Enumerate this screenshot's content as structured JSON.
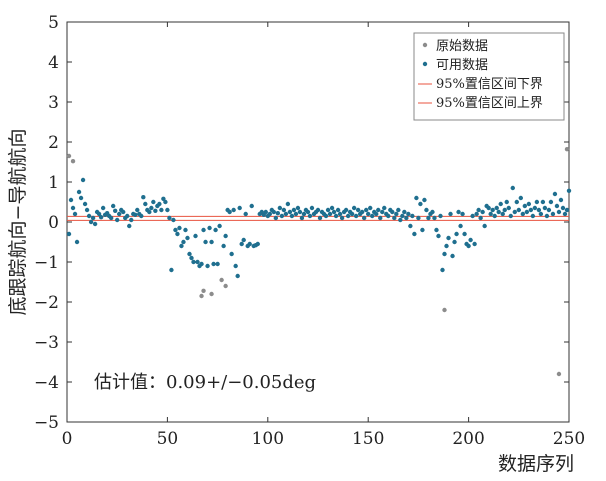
{
  "chart_data": {
    "type": "scatter",
    "title": "",
    "xlabel": "数据序列",
    "ylabel": "底跟踪航向−导航航向",
    "xlim": [
      0,
      250
    ],
    "ylim": [
      -5,
      5
    ],
    "xticks": [
      "0",
      "50",
      "100",
      "150",
      "200",
      "250"
    ],
    "yticks": [
      "−5",
      "−4",
      "−3",
      "−2",
      "−1",
      "0",
      "1",
      "2",
      "3",
      "4",
      "5"
    ],
    "annotation": "估计值：0.09+/−0.05deg",
    "lines": [
      {
        "name": "95%置信区间下界",
        "y": 0.04,
        "color": "#e8533f"
      },
      {
        "name": "95%置信区间上界",
        "y": 0.14,
        "color": "#e8533f"
      }
    ],
    "series": [
      {
        "name": "原始数据",
        "color": "#8c8c8c",
        "points": [
          [
            1,
            1.65
          ],
          [
            3,
            1.52
          ],
          [
            67,
            -1.85
          ],
          [
            68,
            -1.72
          ],
          [
            72,
            -1.8
          ],
          [
            77,
            -1.45
          ],
          [
            79,
            -1.6
          ],
          [
            188,
            -2.2
          ],
          [
            245,
            -3.8
          ],
          [
            249,
            1.82
          ]
        ]
      },
      {
        "name": "可用数据",
        "color": "#1f6f8f",
        "points": [
          [
            1,
            -0.3
          ],
          [
            2,
            0.55
          ],
          [
            3,
            0.35
          ],
          [
            4,
            0.2
          ],
          [
            5,
            -0.5
          ],
          [
            6,
            0.75
          ],
          [
            7,
            0.6
          ],
          [
            8,
            1.05
          ],
          [
            9,
            0.45
          ],
          [
            10,
            0.3
          ],
          [
            11,
            0.15
          ],
          [
            12,
            0.0
          ],
          [
            13,
            0.1
          ],
          [
            14,
            -0.05
          ],
          [
            15,
            0.25
          ],
          [
            16,
            0.2
          ],
          [
            17,
            0.12
          ],
          [
            18,
            0.35
          ],
          [
            19,
            0.18
          ],
          [
            20,
            0.22
          ],
          [
            21,
            0.15
          ],
          [
            22,
            0.1
          ],
          [
            23,
            0.4
          ],
          [
            24,
            0.28
          ],
          [
            25,
            0.05
          ],
          [
            26,
            0.2
          ],
          [
            27,
            0.3
          ],
          [
            28,
            0.25
          ],
          [
            29,
            0.1
          ],
          [
            30,
            0.15
          ],
          [
            31,
            -0.1
          ],
          [
            32,
            0.05
          ],
          [
            33,
            0.2
          ],
          [
            34,
            0.18
          ],
          [
            35,
            0.3
          ],
          [
            36,
            0.2
          ],
          [
            37,
            0.15
          ],
          [
            38,
            0.62
          ],
          [
            39,
            0.45
          ],
          [
            40,
            0.3
          ],
          [
            41,
            0.25
          ],
          [
            42,
            0.35
          ],
          [
            43,
            0.5
          ],
          [
            44,
            0.28
          ],
          [
            45,
            0.4
          ],
          [
            46,
            0.45
          ],
          [
            47,
            0.3
          ],
          [
            48,
            0.58
          ],
          [
            49,
            0.5
          ],
          [
            50,
            0.3
          ],
          [
            51,
            0.1
          ],
          [
            52,
            -1.2
          ],
          [
            53,
            0.05
          ],
          [
            54,
            -0.2
          ],
          [
            55,
            -0.3
          ],
          [
            56,
            -0.15
          ],
          [
            57,
            -0.6
          ],
          [
            58,
            -0.5
          ],
          [
            59,
            -0.2
          ],
          [
            60,
            -0.4
          ],
          [
            61,
            -0.8
          ],
          [
            62,
            -0.9
          ],
          [
            63,
            -1.0
          ],
          [
            64,
            -0.35
          ],
          [
            65,
            -1.0
          ],
          [
            66,
            -1.1
          ],
          [
            67,
            -1.05
          ],
          [
            68,
            -0.2
          ],
          [
            69,
            -0.5
          ],
          [
            70,
            -1.1
          ],
          [
            71,
            -0.15
          ],
          [
            72,
            -0.5
          ],
          [
            73,
            -1.05
          ],
          [
            74,
            -0.2
          ],
          [
            75,
            -1.05
          ],
          [
            76,
            -0.1
          ],
          [
            78,
            -0.6
          ],
          [
            79,
            -0.35
          ],
          [
            80,
            0.3
          ],
          [
            81,
            0.25
          ],
          [
            82,
            -0.8
          ],
          [
            83,
            0.3
          ],
          [
            84,
            -1.1
          ],
          [
            85,
            -1.35
          ],
          [
            86,
            0.35
          ],
          [
            87,
            -0.55
          ],
          [
            88,
            -0.45
          ],
          [
            89,
            0.2
          ],
          [
            90,
            -0.6
          ],
          [
            91,
            -0.55
          ],
          [
            92,
            0.4
          ],
          [
            93,
            -0.6
          ],
          [
            94,
            -0.58
          ],
          [
            95,
            -0.55
          ],
          [
            96,
            0.2
          ],
          [
            97,
            0.25
          ],
          [
            98,
            0.18
          ],
          [
            99,
            0.25
          ],
          [
            100,
            0.15
          ],
          [
            101,
            0.2
          ],
          [
            102,
            0.3
          ],
          [
            103,
            0.25
          ],
          [
            104,
            0.1
          ],
          [
            105,
            0.22
          ],
          [
            106,
            0.35
          ],
          [
            107,
            0.15
          ],
          [
            108,
            0.3
          ],
          [
            109,
            0.2
          ],
          [
            110,
            0.45
          ],
          [
            111,
            0.25
          ],
          [
            112,
            0.15
          ],
          [
            113,
            0.3
          ],
          [
            114,
            0.2
          ],
          [
            115,
            0.35
          ],
          [
            116,
            0.25
          ],
          [
            117,
            0.1
          ],
          [
            118,
            0.2
          ],
          [
            119,
            0.3
          ],
          [
            120,
            0.25
          ],
          [
            121,
            0.15
          ],
          [
            122,
            0.35
          ],
          [
            123,
            0.2
          ],
          [
            124,
            0.25
          ],
          [
            125,
            0.3
          ],
          [
            126,
            0.1
          ],
          [
            127,
            0.25
          ],
          [
            128,
            0.2
          ],
          [
            129,
            0.15
          ],
          [
            130,
            0.3
          ],
          [
            131,
            0.2
          ],
          [
            132,
            0.35
          ],
          [
            133,
            0.25
          ],
          [
            134,
            0.15
          ],
          [
            135,
            0.3
          ],
          [
            136,
            0.2
          ],
          [
            137,
            0.1
          ],
          [
            138,
            0.25
          ],
          [
            139,
            0.3
          ],
          [
            140,
            0.15
          ],
          [
            141,
            0.25
          ],
          [
            142,
            0.2
          ],
          [
            143,
            0.35
          ],
          [
            144,
            0.15
          ],
          [
            145,
            0.3
          ],
          [
            146,
            0.2
          ],
          [
            147,
            0.25
          ],
          [
            148,
            0.1
          ],
          [
            149,
            0.3
          ],
          [
            150,
            0.2
          ],
          [
            151,
            0.35
          ],
          [
            152,
            0.15
          ],
          [
            153,
            0.25
          ],
          [
            154,
            0.2
          ],
          [
            155,
            0.3
          ],
          [
            156,
            0.1
          ],
          [
            157,
            0.25
          ],
          [
            158,
            0.35
          ],
          [
            159,
            0.2
          ],
          [
            160,
            0.15
          ],
          [
            161,
            0.3
          ],
          [
            162,
            0.25
          ],
          [
            163,
            0.1
          ],
          [
            164,
            0.2
          ],
          [
            165,
            0.3
          ],
          [
            166,
            0.05
          ],
          [
            167,
            0.15
          ],
          [
            168,
            0.25
          ],
          [
            169,
            0.1
          ],
          [
            170,
            0.2
          ],
          [
            171,
            -0.1
          ],
          [
            172,
            0.15
          ],
          [
            173,
            -0.3
          ],
          [
            174,
            0.6
          ],
          [
            175,
            0.1
          ],
          [
            176,
            0.45
          ],
          [
            177,
            -0.2
          ],
          [
            178,
            0.55
          ],
          [
            179,
            0.3
          ],
          [
            180,
            0.1
          ],
          [
            181,
            0.2
          ],
          [
            182,
            0.25
          ],
          [
            183,
            0.1
          ],
          [
            184,
            -0.2
          ],
          [
            185,
            -0.35
          ],
          [
            186,
            0.15
          ],
          [
            187,
            -1.2
          ],
          [
            188,
            -0.8
          ],
          [
            189,
            -0.6
          ],
          [
            190,
            -0.4
          ],
          [
            191,
            0.2
          ],
          [
            192,
            -0.85
          ],
          [
            193,
            -0.5
          ],
          [
            194,
            -0.3
          ],
          [
            195,
            0.25
          ],
          [
            196,
            -0.1
          ],
          [
            197,
            0.2
          ],
          [
            198,
            -0.3
          ],
          [
            199,
            -0.55
          ],
          [
            200,
            -0.6
          ],
          [
            201,
            -0.45
          ],
          [
            202,
            0.15
          ],
          [
            203,
            -0.55
          ],
          [
            204,
            0.2
          ],
          [
            205,
            0.3
          ],
          [
            206,
            0.1
          ],
          [
            207,
            0.25
          ],
          [
            208,
            -0.1
          ],
          [
            209,
            0.4
          ],
          [
            210,
            0.35
          ],
          [
            211,
            0.2
          ],
          [
            212,
            0.3
          ],
          [
            213,
            0.15
          ],
          [
            214,
            0.35
          ],
          [
            215,
            0.25
          ],
          [
            216,
            0.45
          ],
          [
            217,
            0.2
          ],
          [
            218,
            0.3
          ],
          [
            219,
            0.5
          ],
          [
            220,
            0.35
          ],
          [
            221,
            0.15
          ],
          [
            222,
            0.85
          ],
          [
            223,
            0.25
          ],
          [
            224,
            0.5
          ],
          [
            225,
            0.3
          ],
          [
            226,
            0.6
          ],
          [
            227,
            0.2
          ],
          [
            228,
            0.4
          ],
          [
            229,
            0.25
          ],
          [
            230,
            0.45
          ],
          [
            231,
            0.3
          ],
          [
            232,
            0.15
          ],
          [
            233,
            0.35
          ],
          [
            234,
            0.5
          ],
          [
            235,
            0.3
          ],
          [
            236,
            0.2
          ],
          [
            237,
            0.5
          ],
          [
            238,
            0.35
          ],
          [
            239,
            0.15
          ],
          [
            240,
            0.3
          ],
          [
            241,
            0.5
          ],
          [
            242,
            0.2
          ],
          [
            243,
            0.7
          ],
          [
            244,
            0.4
          ],
          [
            245,
            0.25
          ],
          [
            246,
            0.55
          ],
          [
            247,
            0.35
          ],
          [
            248,
            0.2
          ],
          [
            249,
            0.3
          ],
          [
            250,
            0.78
          ]
        ]
      }
    ]
  }
}
